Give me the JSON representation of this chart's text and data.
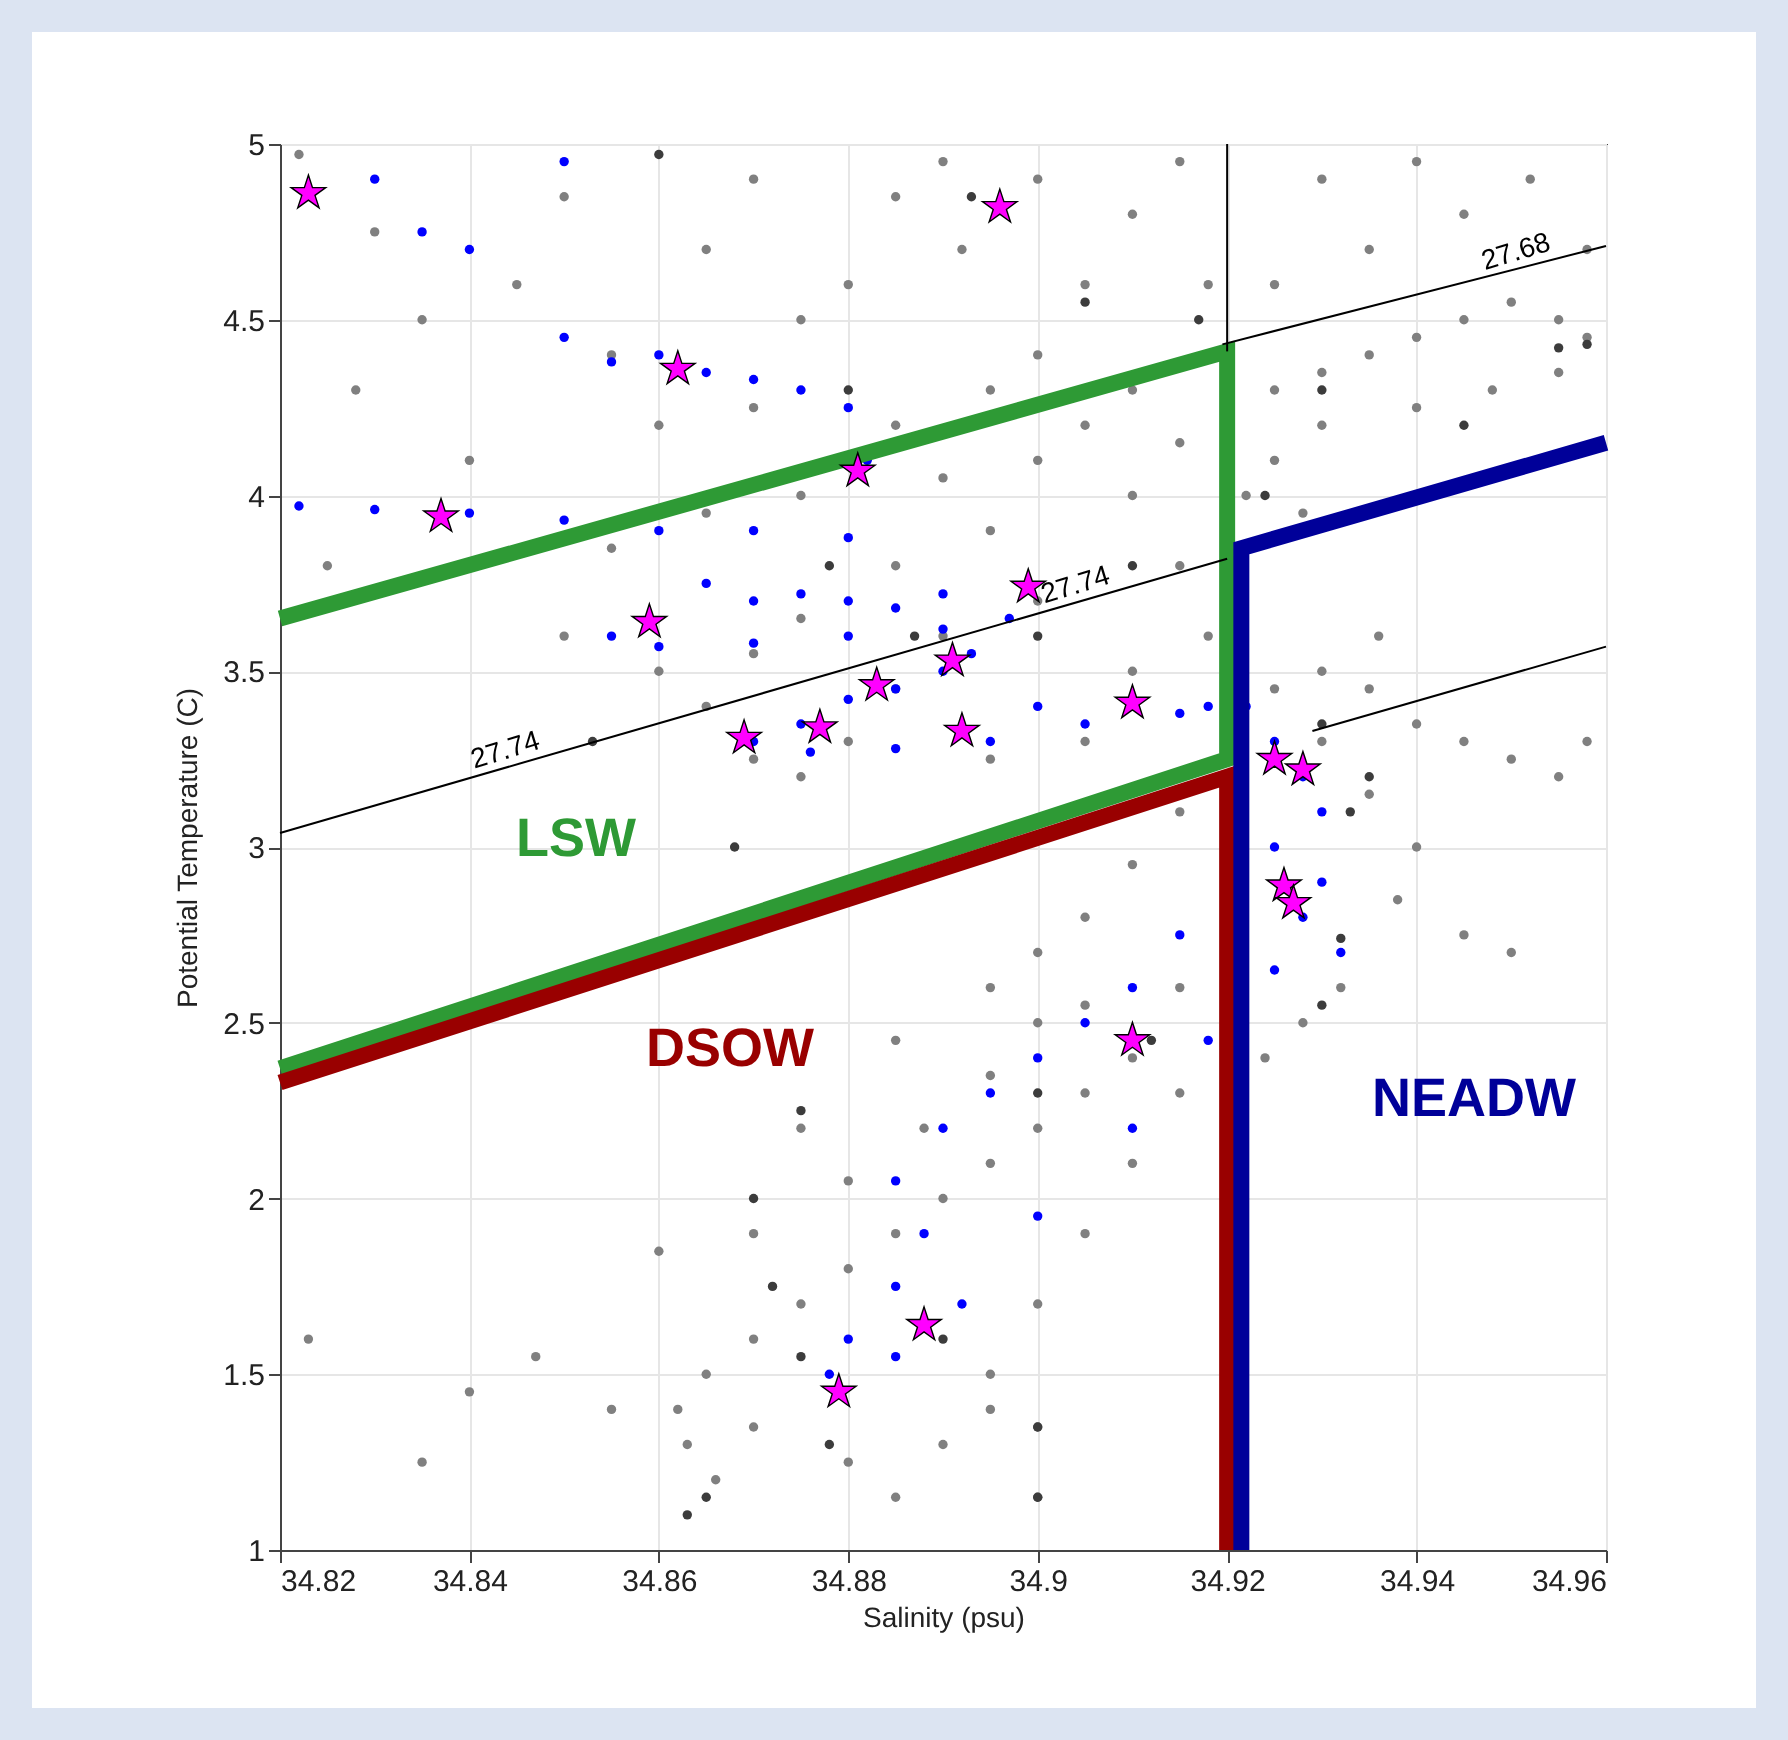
{
  "chart_data": {
    "type": "scatter",
    "xlabel": "Salinity (psu)",
    "ylabel": "Potential Temperature (C)",
    "xlim": [
      34.82,
      34.96
    ],
    "xticks": [
      34.82,
      34.84,
      34.86,
      34.88,
      34.9,
      34.92,
      34.94,
      34.96
    ],
    "ylim": [
      1,
      5
    ],
    "yticks": [
      1,
      1.5,
      2,
      2.5,
      3,
      3.5,
      4,
      4.5,
      5
    ],
    "grid": true,
    "series": [
      {
        "color": "#808080",
        "marker": "circle",
        "x": [
          34.822,
          34.83,
          34.835,
          34.828,
          34.845,
          34.85,
          34.855,
          34.84,
          34.825,
          34.86,
          34.865,
          34.87,
          34.875,
          34.87,
          34.88,
          34.885,
          34.89,
          34.892,
          34.9,
          34.905,
          34.91,
          34.915,
          34.918,
          34.9,
          34.895,
          34.885,
          34.875,
          34.865,
          34.855,
          34.85,
          34.86,
          34.865,
          34.87,
          34.875,
          34.88,
          34.885,
          34.89,
          34.895,
          34.9,
          34.905,
          34.91,
          34.915,
          34.918,
          34.91,
          34.905,
          34.895,
          34.9,
          34.885,
          34.875,
          34.87,
          34.89,
          34.91,
          34.915,
          34.925,
          34.93,
          34.935,
          34.94,
          34.945,
          34.95,
          34.955,
          34.958,
          34.925,
          34.93,
          34.94,
          34.948,
          34.955,
          34.925,
          34.935,
          34.945,
          34.952,
          34.94,
          34.93,
          34.958,
          34.922,
          34.928,
          34.925,
          34.93,
          34.935,
          34.94,
          34.945,
          34.95,
          34.955,
          34.958,
          34.935,
          34.94,
          34.938,
          34.945,
          34.95,
          34.932,
          34.928,
          34.924,
          34.93,
          34.936,
          34.915,
          34.91,
          34.905,
          34.9,
          34.895,
          34.915,
          34.91,
          34.905,
          34.9,
          34.895,
          34.89,
          34.885,
          34.88,
          34.875,
          34.87,
          34.865,
          34.862,
          34.863,
          34.866,
          34.87,
          34.88,
          34.89,
          34.9,
          34.895,
          34.9,
          34.905,
          34.91,
          34.915,
          34.888,
          34.88,
          34.87,
          34.875,
          34.885,
          34.895,
          34.9,
          34.905,
          34.86,
          34.847,
          34.84,
          34.855,
          34.835,
          34.823,
          34.885,
          34.895,
          34.9
        ],
        "values": [
          4.97,
          4.75,
          4.5,
          4.3,
          4.6,
          4.85,
          4.4,
          4.1,
          3.8,
          4.2,
          4.7,
          4.9,
          4.5,
          4.25,
          4.6,
          4.85,
          4.95,
          4.7,
          4.9,
          4.6,
          4.8,
          4.95,
          4.6,
          4.4,
          4.3,
          4.2,
          4.0,
          3.95,
          3.85,
          3.6,
          3.5,
          3.4,
          3.25,
          3.2,
          3.3,
          3.45,
          3.6,
          3.9,
          4.1,
          4.2,
          4.0,
          3.8,
          3.6,
          3.5,
          3.3,
          3.25,
          3.7,
          3.8,
          3.65,
          3.55,
          4.05,
          4.3,
          4.15,
          4.3,
          4.35,
          4.4,
          4.45,
          4.5,
          4.55,
          4.5,
          4.45,
          4.1,
          4.2,
          4.25,
          4.3,
          4.35,
          4.6,
          4.7,
          4.8,
          4.9,
          4.95,
          4.9,
          4.7,
          4.0,
          3.95,
          3.45,
          3.5,
          3.45,
          3.35,
          3.3,
          3.25,
          3.2,
          3.3,
          3.15,
          3.0,
          2.85,
          2.75,
          2.7,
          2.6,
          2.5,
          2.4,
          3.3,
          3.6,
          3.1,
          2.95,
          2.8,
          2.7,
          2.6,
          2.6,
          2.4,
          2.3,
          2.2,
          2.1,
          2.0,
          1.9,
          1.8,
          1.7,
          1.6,
          1.5,
          1.4,
          1.3,
          1.2,
          1.35,
          1.25,
          1.3,
          1.35,
          1.5,
          1.7,
          1.9,
          2.1,
          2.3,
          2.2,
          2.05,
          1.9,
          2.2,
          2.45,
          2.35,
          2.5,
          2.55,
          1.85,
          1.55,
          1.45,
          1.4,
          1.25,
          1.6,
          1.15,
          1.4,
          1.15
        ]
      },
      {
        "color": "#3c3c3c",
        "marker": "circle",
        "x": [
          34.86,
          34.893,
          34.905,
          34.917,
          34.88,
          34.878,
          34.887,
          34.853,
          34.868,
          34.9,
          34.91,
          34.93,
          34.945,
          34.955,
          34.958,
          34.924,
          34.93,
          34.933,
          34.932,
          34.93,
          34.912,
          34.9,
          34.875,
          34.87,
          34.872,
          34.875,
          34.878,
          34.865,
          34.863,
          34.9,
          34.9,
          34.89,
          34.935
        ],
        "values": [
          4.97,
          4.85,
          4.55,
          4.5,
          4.3,
          3.8,
          3.6,
          3.3,
          3.0,
          3.6,
          3.8,
          4.3,
          4.2,
          4.42,
          4.43,
          4.0,
          3.35,
          3.1,
          2.74,
          2.55,
          2.45,
          2.3,
          2.25,
          2.0,
          1.75,
          1.55,
          1.3,
          1.15,
          1.1,
          1.15,
          1.35,
          1.6,
          3.2
        ]
      },
      {
        "color": "#0000ff",
        "marker": "circle",
        "x": [
          34.83,
          34.835,
          34.84,
          34.85,
          34.86,
          34.855,
          34.865,
          34.87,
          34.875,
          34.88,
          34.85,
          34.822,
          34.83,
          34.84,
          34.85,
          34.86,
          34.87,
          34.88,
          34.882,
          34.865,
          34.87,
          34.875,
          34.88,
          34.885,
          34.89,
          34.855,
          34.86,
          34.87,
          34.88,
          34.89,
          34.897,
          34.893,
          34.89,
          34.885,
          34.88,
          34.875,
          34.87,
          34.876,
          34.885,
          34.895,
          34.905,
          34.915,
          34.9,
          34.918,
          34.922,
          34.925,
          34.928,
          34.93,
          34.925,
          34.93,
          34.928,
          34.932,
          34.925,
          34.915,
          34.91,
          34.905,
          34.9,
          34.895,
          34.89,
          34.885,
          34.888,
          34.885,
          34.88,
          34.885,
          34.878,
          34.892,
          34.9,
          34.91,
          34.918
        ],
        "values": [
          4.9,
          4.75,
          4.7,
          4.95,
          4.4,
          4.38,
          4.35,
          4.33,
          4.3,
          4.25,
          4.45,
          3.97,
          3.96,
          3.95,
          3.93,
          3.9,
          3.9,
          3.88,
          4.1,
          3.75,
          3.7,
          3.72,
          3.7,
          3.68,
          3.72,
          3.6,
          3.57,
          3.58,
          3.6,
          3.62,
          3.65,
          3.55,
          3.5,
          3.45,
          3.42,
          3.35,
          3.3,
          3.27,
          3.28,
          3.3,
          3.35,
          3.38,
          3.4,
          3.4,
          3.4,
          3.3,
          3.2,
          3.1,
          3.0,
          2.9,
          2.8,
          2.7,
          2.65,
          2.75,
          2.6,
          2.5,
          2.4,
          2.3,
          2.2,
          2.05,
          1.9,
          1.75,
          1.6,
          1.55,
          1.5,
          1.7,
          1.95,
          2.2,
          2.45
        ]
      },
      {
        "type": "line",
        "color": "#2e9a35",
        "x": [
          34.82,
          34.92,
          34.92,
          34.82
        ],
        "values": [
          3.65,
          4.41,
          3.25,
          2.37
        ]
      },
      {
        "type": "line",
        "color": "#990000",
        "x": [
          34.82,
          34.92,
          34.92
        ],
        "values": [
          2.33,
          3.2,
          1
        ]
      },
      {
        "type": "line",
        "color": "#000099",
        "x": [
          34.9215,
          34.9215,
          34.96
        ],
        "values": [
          1,
          3.85,
          4.15
        ]
      },
      {
        "type": "line",
        "color": "#000000",
        "x": [
          34.9195,
          34.96
        ],
        "values": [
          4.43,
          4.71
        ]
      },
      {
        "type": "line",
        "color": "#000000",
        "x": [
          34.82,
          34.92
        ],
        "values": [
          3.04,
          3.82
        ]
      },
      {
        "type": "line",
        "color": "#000000",
        "x": [
          34.929,
          34.96
        ],
        "values": [
          3.33,
          3.57
        ]
      },
      {
        "type": "line",
        "color": "#000000",
        "x": [
          34.92,
          34.92
        ],
        "values": [
          5,
          4.41
        ]
      },
      {
        "color": "#ff00ff",
        "marker": "star",
        "x": [
          34.823,
          34.896,
          34.862,
          34.881,
          34.837,
          34.859,
          34.899,
          34.891,
          34.883,
          34.877,
          34.869,
          34.892,
          34.91,
          34.925,
          34.928,
          34.926,
          34.927,
          34.91,
          34.888,
          34.879
        ],
        "values": [
          4.86,
          4.82,
          4.36,
          4.07,
          3.94,
          3.64,
          3.74,
          3.53,
          3.46,
          3.34,
          3.31,
          3.33,
          3.41,
          3.25,
          3.22,
          2.89,
          2.84,
          2.45,
          1.64,
          1.45
        ]
      }
    ],
    "annotations": [
      "LSW",
      "DSOW",
      "NEADW",
      {
        "text": "27.68",
        "x": 34.951,
        "y": 4.648
      },
      {
        "text": "27.74",
        "x": 34.8443,
        "y": 3.23
      },
      {
        "text": "27.74",
        "x": 34.9045,
        "y": 3.7
      }
    ]
  }
}
